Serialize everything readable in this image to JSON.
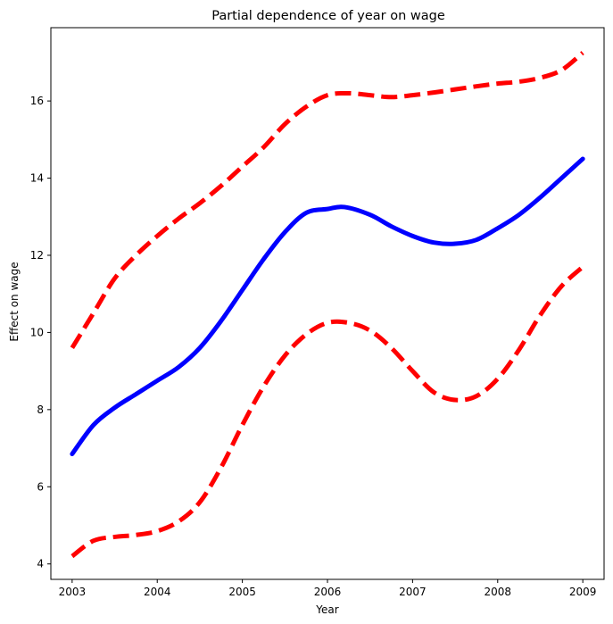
{
  "chart_data": {
    "type": "line",
    "title": "Partial dependence of year on wage",
    "xlabel": "Year",
    "ylabel": "Effect on wage",
    "xlim": [
      2002.75,
      2009.25
    ],
    "ylim": [
      3.6,
      17.9
    ],
    "x_ticks": [
      2003,
      2004,
      2005,
      2006,
      2007,
      2008,
      2009
    ],
    "y_ticks": [
      4,
      6,
      8,
      10,
      12,
      14,
      16
    ],
    "grid": false,
    "legend": "none",
    "series": [
      {
        "role": "estimate",
        "color": "#0000ff",
        "linestyle": "solid",
        "x": [
          2003,
          2003.25,
          2003.5,
          2003.75,
          2004,
          2004.25,
          2004.5,
          2004.75,
          2005,
          2005.25,
          2005.5,
          2005.75,
          2006,
          2006.2,
          2006.5,
          2006.75,
          2007,
          2007.25,
          2007.5,
          2007.75,
          2008,
          2008.25,
          2008.5,
          2008.75,
          2009
        ],
        "y": [
          6.85,
          7.6,
          8.05,
          8.4,
          8.75,
          9.1,
          9.6,
          10.3,
          11.1,
          11.9,
          12.6,
          13.1,
          13.2,
          13.25,
          13.05,
          12.75,
          12.5,
          12.33,
          12.3,
          12.4,
          12.7,
          13.05,
          13.5,
          14.0,
          14.5
        ]
      },
      {
        "role": "upper bound",
        "color": "#ff0000",
        "linestyle": "dashed",
        "x": [
          2003,
          2003.25,
          2003.5,
          2003.75,
          2004,
          2004.25,
          2004.5,
          2004.75,
          2005,
          2005.25,
          2005.5,
          2005.75,
          2006,
          2006.25,
          2006.5,
          2006.75,
          2007,
          2007.25,
          2007.5,
          2007.75,
          2008,
          2008.25,
          2008.5,
          2008.75,
          2009
        ],
        "y": [
          9.6,
          10.5,
          11.4,
          12.0,
          12.5,
          12.95,
          13.35,
          13.8,
          14.3,
          14.8,
          15.4,
          15.85,
          16.15,
          16.2,
          16.15,
          16.1,
          16.15,
          16.22,
          16.3,
          16.38,
          16.45,
          16.5,
          16.6,
          16.8,
          17.25
        ]
      },
      {
        "role": "lower bound",
        "color": "#ff0000",
        "linestyle": "dashed",
        "x": [
          2003,
          2003.25,
          2003.5,
          2003.75,
          2004,
          2004.25,
          2004.5,
          2004.75,
          2005,
          2005.25,
          2005.5,
          2005.75,
          2006,
          2006.25,
          2006.5,
          2006.75,
          2007,
          2007.25,
          2007.5,
          2007.75,
          2008,
          2008.25,
          2008.5,
          2008.75,
          2009
        ],
        "y": [
          4.2,
          4.6,
          4.7,
          4.75,
          4.85,
          5.1,
          5.6,
          6.5,
          7.6,
          8.6,
          9.4,
          9.95,
          10.25,
          10.25,
          10.05,
          9.6,
          9.0,
          8.45,
          8.25,
          8.35,
          8.8,
          9.55,
          10.45,
          11.2,
          11.7
        ]
      }
    ]
  }
}
